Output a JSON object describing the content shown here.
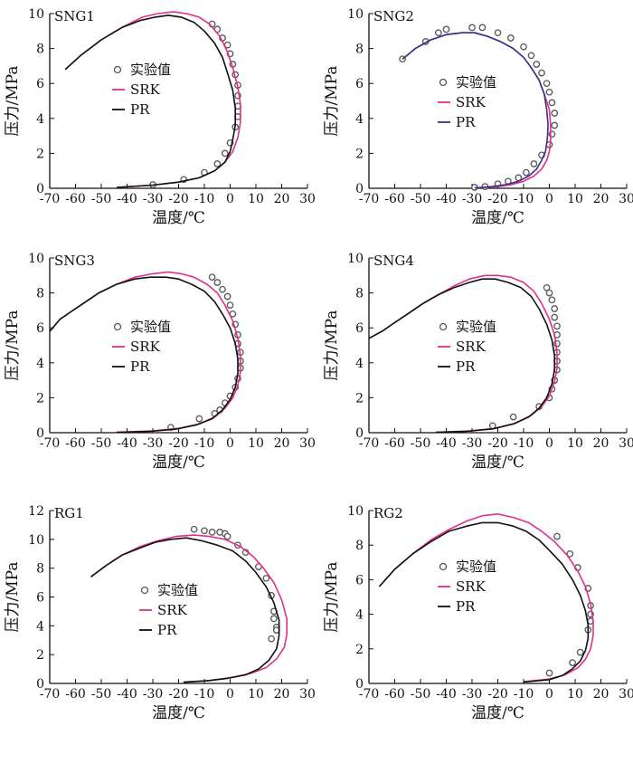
{
  "colors": {
    "srk": "#e0308a",
    "pr": "#111111",
    "pr_sng2": "#3a2e8c",
    "experiment_marker": "#555555"
  },
  "chart_data": [
    {
      "type": "line",
      "title": "SNG1",
      "xlabel": "温度/℃",
      "ylabel": "压力/MPa",
      "xlim": [
        -70,
        30
      ],
      "ylim": [
        0,
        10
      ],
      "xticks": [
        -70,
        -60,
        -50,
        -40,
        -30,
        -20,
        -10,
        0,
        10,
        20,
        30
      ],
      "yticks": [
        0,
        2,
        4,
        6,
        8,
        10
      ],
      "grid": false,
      "legend_position": "center-left",
      "legend": [
        "实验值",
        "SRK",
        "PR"
      ],
      "series": [
        {
          "name": "实验值",
          "kind": "scatter",
          "x": [
            -7,
            -5,
            -3,
            -1,
            0,
            1,
            2,
            3,
            3,
            3,
            3,
            2,
            0,
            -2,
            -5,
            -10,
            -18,
            -30
          ],
          "y": [
            9.4,
            9.1,
            8.6,
            8.2,
            7.7,
            7.1,
            6.5,
            5.9,
            5.3,
            4.7,
            4.1,
            3.5,
            2.6,
            2.0,
            1.4,
            0.9,
            0.5,
            0.2
          ]
        },
        {
          "name": "SRK",
          "kind": "line",
          "x": [
            -64,
            -58,
            -50,
            -42,
            -34,
            -28,
            -22,
            -17,
            -12,
            -8,
            -4,
            -1,
            1,
            3,
            4,
            4,
            3,
            1,
            -2,
            -6,
            -12,
            -20,
            -30,
            -44
          ],
          "y": [
            6.8,
            7.6,
            8.5,
            9.2,
            9.8,
            10.0,
            10.1,
            10.0,
            9.8,
            9.4,
            8.7,
            7.8,
            6.9,
            5.8,
            4.8,
            3.8,
            2.9,
            2.1,
            1.5,
            1.0,
            0.6,
            0.35,
            0.18,
            0.05
          ]
        },
        {
          "name": "PR",
          "kind": "line",
          "x": [
            -64,
            -58,
            -50,
            -42,
            -35,
            -29,
            -24,
            -19,
            -14,
            -10,
            -6,
            -3,
            -1,
            1,
            2,
            2,
            1,
            0,
            -2,
            -6,
            -12,
            -20,
            -30,
            -44
          ],
          "y": [
            6.8,
            7.6,
            8.5,
            9.2,
            9.6,
            9.8,
            9.9,
            9.8,
            9.5,
            9.0,
            8.3,
            7.5,
            6.6,
            5.6,
            4.6,
            3.6,
            2.8,
            2.1,
            1.5,
            1.0,
            0.6,
            0.35,
            0.18,
            0.05
          ]
        }
      ]
    },
    {
      "type": "line",
      "title": "SNG2",
      "xlabel": "温度/℃",
      "ylabel": "压力/MPa",
      "xlim": [
        -70,
        30
      ],
      "ylim": [
        0,
        10
      ],
      "xticks": [
        -70,
        -60,
        -50,
        -40,
        -30,
        -20,
        -10,
        0,
        10,
        20,
        30
      ],
      "yticks": [
        0,
        2,
        4,
        6,
        8,
        10
      ],
      "grid": false,
      "legend_position": "center-right",
      "legend": [
        "实验值",
        "SRK",
        "PR"
      ],
      "series": [
        {
          "name": "实验值",
          "kind": "scatter",
          "x": [
            -57,
            -48,
            -43,
            -40,
            -30,
            -26,
            -20,
            -15,
            -10,
            -7,
            -5,
            -3,
            -1,
            0,
            1,
            2,
            2,
            1,
            0,
            -3,
            -6,
            -9,
            -12,
            -16,
            -20,
            -25,
            -29
          ],
          "y": [
            7.4,
            8.4,
            8.9,
            9.1,
            9.2,
            9.2,
            8.9,
            8.6,
            8.1,
            7.6,
            7.1,
            6.6,
            6.0,
            5.5,
            4.9,
            4.3,
            3.6,
            3.1,
            2.5,
            1.9,
            1.4,
            0.9,
            0.6,
            0.4,
            0.25,
            0.1,
            0.05
          ]
        },
        {
          "name": "SRK",
          "kind": "line",
          "x": [
            -57,
            -52,
            -46,
            -40,
            -34,
            -29,
            -24,
            -19,
            -14,
            -10,
            -7,
            -4,
            -2,
            0,
            0.5,
            0.5,
            0,
            -1,
            -3,
            -6,
            -10,
            -15,
            -20,
            -25,
            -29
          ],
          "y": [
            7.4,
            8.0,
            8.5,
            8.8,
            8.9,
            8.9,
            8.7,
            8.4,
            8.0,
            7.5,
            6.9,
            6.2,
            5.4,
            4.5,
            3.6,
            2.8,
            2.1,
            1.6,
            1.1,
            0.7,
            0.4,
            0.2,
            0.1,
            0.05,
            0.02
          ]
        },
        {
          "name": "PR",
          "kind": "line",
          "x": [
            -57,
            -52,
            -46,
            -40,
            -34,
            -29,
            -24,
            -19,
            -14,
            -10,
            -7,
            -4,
            -2,
            -1,
            -0.5,
            -0.8,
            -1.5,
            -3,
            -5,
            -8,
            -12,
            -17,
            -22,
            -26,
            -29
          ],
          "y": [
            7.4,
            8.0,
            8.5,
            8.8,
            8.9,
            8.9,
            8.7,
            8.4,
            8.0,
            7.5,
            6.9,
            6.2,
            5.4,
            4.5,
            3.6,
            2.8,
            2.1,
            1.6,
            1.1,
            0.7,
            0.4,
            0.2,
            0.1,
            0.05,
            0.02
          ]
        }
      ]
    },
    {
      "type": "line",
      "title": "SNG3",
      "xlabel": "温度/℃",
      "ylabel": "压力/MPa",
      "xlim": [
        -70,
        30
      ],
      "ylim": [
        0,
        10
      ],
      "xticks": [
        -70,
        -60,
        -50,
        -40,
        -30,
        -20,
        -10,
        0,
        10,
        20,
        30
      ],
      "yticks": [
        0,
        2,
        4,
        6,
        8,
        10
      ],
      "grid": false,
      "legend_position": "center-left",
      "legend": [
        "实验值",
        "SRK",
        "PR"
      ],
      "series": [
        {
          "name": "实验值",
          "kind": "scatter",
          "x": [
            -7,
            -5,
            -3,
            -1,
            0,
            1,
            2,
            3,
            3,
            4,
            4,
            4,
            3,
            2,
            0,
            -2,
            -4,
            -6,
            -12,
            -23
          ],
          "y": [
            8.9,
            8.6,
            8.2,
            7.8,
            7.3,
            6.8,
            6.2,
            5.6,
            5.1,
            4.6,
            4.1,
            3.7,
            3.1,
            2.6,
            2.1,
            1.7,
            1.3,
            1.1,
            0.8,
            0.3
          ]
        },
        {
          "name": "SRK",
          "kind": "line",
          "x": [
            -70,
            -66,
            -61,
            -56,
            -51,
            -44,
            -37,
            -30,
            -24,
            -19,
            -14,
            -9,
            -5,
            -2,
            1,
            3,
            4,
            4,
            3,
            1,
            -2,
            -6,
            -12,
            -20,
            -30,
            -44
          ],
          "y": [
            5.8,
            6.5,
            7.0,
            7.5,
            8.0,
            8.5,
            8.9,
            9.1,
            9.2,
            9.1,
            8.9,
            8.5,
            8.0,
            7.3,
            6.4,
            5.4,
            4.4,
            3.5,
            2.7,
            2.0,
            1.4,
            0.9,
            0.5,
            0.25,
            0.1,
            0.02
          ]
        },
        {
          "name": "PR",
          "kind": "line",
          "x": [
            -70,
            -66,
            -61,
            -56,
            -51,
            -44,
            -37,
            -31,
            -25,
            -20,
            -15,
            -10,
            -6,
            -3,
            0,
            2,
            3,
            3,
            2,
            0,
            -3,
            -7,
            -13,
            -21,
            -31,
            -44
          ],
          "y": [
            5.8,
            6.5,
            7.0,
            7.5,
            8.0,
            8.5,
            8.8,
            8.9,
            8.9,
            8.8,
            8.5,
            8.1,
            7.5,
            6.8,
            6.0,
            5.1,
            4.2,
            3.4,
            2.6,
            1.9,
            1.3,
            0.8,
            0.45,
            0.2,
            0.08,
            0.02
          ]
        }
      ]
    },
    {
      "type": "line",
      "title": "SNG4",
      "xlabel": "温度/℃",
      "ylabel": "压力/MPa",
      "xlim": [
        -70,
        30
      ],
      "ylim": [
        0,
        10
      ],
      "xticks": [
        -70,
        -60,
        -50,
        -40,
        -30,
        -20,
        -10,
        0,
        10,
        20,
        30
      ],
      "yticks": [
        0,
        2,
        4,
        6,
        8,
        10
      ],
      "grid": false,
      "legend_position": "center-right",
      "legend": [
        "实验值",
        "SRK",
        "PR"
      ],
      "series": [
        {
          "name": "实验值",
          "kind": "scatter",
          "x": [
            -1,
            0,
            1,
            2,
            2,
            3,
            3,
            3,
            3,
            3,
            3,
            2,
            1,
            0,
            -4,
            -14,
            -22
          ],
          "y": [
            8.3,
            8.0,
            7.6,
            7.1,
            6.6,
            6.1,
            5.6,
            5.1,
            4.6,
            4.1,
            3.6,
            3.0,
            2.5,
            2.0,
            1.5,
            0.9,
            0.4
          ]
        },
        {
          "name": "SRK",
          "kind": "line",
          "x": [
            -70,
            -65,
            -60,
            -55,
            -49,
            -43,
            -37,
            -31,
            -25,
            -20,
            -15,
            -10,
            -6,
            -3,
            0,
            2,
            3,
            3,
            2,
            0,
            -3,
            -7,
            -13,
            -21,
            -31,
            -44
          ],
          "y": [
            5.4,
            5.8,
            6.3,
            6.8,
            7.4,
            7.9,
            8.4,
            8.8,
            9.0,
            9.0,
            8.9,
            8.6,
            8.1,
            7.4,
            6.5,
            5.6,
            4.6,
            3.7,
            2.9,
            2.1,
            1.5,
            1.0,
            0.55,
            0.25,
            0.1,
            0.02
          ]
        },
        {
          "name": "PR",
          "kind": "line",
          "x": [
            -70,
            -65,
            -60,
            -55,
            -49,
            -43,
            -37,
            -31,
            -26,
            -21,
            -16,
            -11,
            -7,
            -4,
            -1,
            1,
            2,
            2,
            1,
            -1,
            -4,
            -8,
            -14,
            -22,
            -32,
            -44
          ],
          "y": [
            5.4,
            5.8,
            6.3,
            6.8,
            7.4,
            7.9,
            8.3,
            8.6,
            8.8,
            8.8,
            8.6,
            8.3,
            7.8,
            7.1,
            6.2,
            5.3,
            4.4,
            3.6,
            2.8,
            2.0,
            1.4,
            0.9,
            0.5,
            0.22,
            0.08,
            0.02
          ]
        }
      ]
    },
    {
      "type": "line",
      "title": "RG1",
      "xlabel": "温度/℃",
      "ylabel": "压力/MPa",
      "xlim": [
        -70,
        30
      ],
      "ylim": [
        0,
        12
      ],
      "xticks": [
        -70,
        -60,
        -50,
        -40,
        -30,
        -20,
        -10,
        0,
        10,
        20,
        30
      ],
      "yticks": [
        0,
        2,
        4,
        6,
        8,
        10,
        12
      ],
      "grid": false,
      "legend_position": "center-left",
      "legend": [
        "实验值",
        "SRK",
        "PR"
      ],
      "series": [
        {
          "name": "实验值",
          "kind": "scatter",
          "x": [
            -14,
            -10,
            -7,
            -4,
            -2,
            -1,
            3,
            6,
            11,
            14,
            16,
            17,
            17,
            18,
            18,
            16
          ],
          "y": [
            10.7,
            10.6,
            10.5,
            10.5,
            10.4,
            10.2,
            9.6,
            9.1,
            8.1,
            7.3,
            6.1,
            5.0,
            4.5,
            3.9,
            3.7,
            3.1
          ]
        },
        {
          "name": "SRK",
          "kind": "line",
          "x": [
            -54,
            -48,
            -42,
            -35,
            -28,
            -21,
            -14,
            -8,
            -2,
            4,
            9,
            13,
            17,
            20,
            22,
            22,
            21,
            18,
            14,
            8,
            0,
            -8,
            -18
          ],
          "y": [
            7.4,
            8.2,
            8.9,
            9.5,
            9.9,
            10.2,
            10.3,
            10.2,
            10.0,
            9.5,
            8.8,
            8.0,
            7.0,
            5.8,
            4.5,
            3.4,
            2.5,
            1.7,
            1.1,
            0.7,
            0.4,
            0.2,
            0.1
          ]
        },
        {
          "name": "PR",
          "kind": "line",
          "x": [
            -54,
            -48,
            -42,
            -35,
            -29,
            -23,
            -17,
            -11,
            -5,
            1,
            6,
            10,
            14,
            17,
            19,
            19,
            18,
            15,
            11,
            6,
            -1,
            -9,
            -18
          ],
          "y": [
            7.4,
            8.2,
            8.9,
            9.4,
            9.8,
            10.0,
            10.1,
            9.9,
            9.6,
            9.2,
            8.5,
            7.7,
            6.7,
            5.6,
            4.4,
            3.3,
            2.4,
            1.6,
            1.0,
            0.6,
            0.35,
            0.18,
            0.08
          ]
        }
      ]
    },
    {
      "type": "line",
      "title": "RG2",
      "xlabel": "温度/℃",
      "ylabel": "压力/MPa",
      "xlim": [
        -70,
        30
      ],
      "ylim": [
        0,
        10
      ],
      "xticks": [
        -70,
        -60,
        -50,
        -40,
        -30,
        -20,
        -10,
        0,
        10,
        20,
        30
      ],
      "yticks": [
        0,
        2,
        4,
        6,
        8,
        10
      ],
      "grid": false,
      "legend_position": "center-right",
      "legend": [
        "实验值",
        "SRK",
        "PR"
      ],
      "series": [
        {
          "name": "实验值",
          "kind": "scatter",
          "x": [
            3,
            8,
            11,
            15,
            16,
            16,
            16,
            15,
            12,
            9,
            0
          ],
          "y": [
            8.5,
            7.5,
            6.7,
            5.5,
            4.5,
            4.0,
            3.6,
            3.1,
            1.8,
            1.2,
            0.6
          ]
        },
        {
          "name": "SRK",
          "kind": "line",
          "x": [
            -66,
            -60,
            -53,
            -46,
            -39,
            -32,
            -26,
            -20,
            -14,
            -8,
            -3,
            2,
            7,
            11,
            14,
            16,
            17,
            17,
            16,
            14,
            11,
            6,
            0,
            -10
          ],
          "y": [
            5.6,
            6.6,
            7.5,
            8.3,
            8.9,
            9.4,
            9.7,
            9.8,
            9.6,
            9.3,
            8.8,
            8.2,
            7.4,
            6.5,
            5.6,
            4.6,
            3.6,
            2.8,
            2.0,
            1.4,
            0.9,
            0.5,
            0.25,
            0.1
          ]
        },
        {
          "name": "PR",
          "kind": "line",
          "x": [
            -66,
            -60,
            -53,
            -46,
            -39,
            -32,
            -26,
            -20,
            -14,
            -9,
            -4,
            0,
            5,
            9,
            12,
            14,
            15,
            15,
            14,
            12,
            9,
            5,
            0,
            -10
          ],
          "y": [
            5.6,
            6.6,
            7.5,
            8.2,
            8.8,
            9.1,
            9.3,
            9.3,
            9.1,
            8.8,
            8.3,
            7.7,
            6.9,
            6.0,
            5.1,
            4.2,
            3.4,
            2.6,
            1.9,
            1.3,
            0.85,
            0.45,
            0.22,
            0.08
          ]
        }
      ]
    }
  ]
}
